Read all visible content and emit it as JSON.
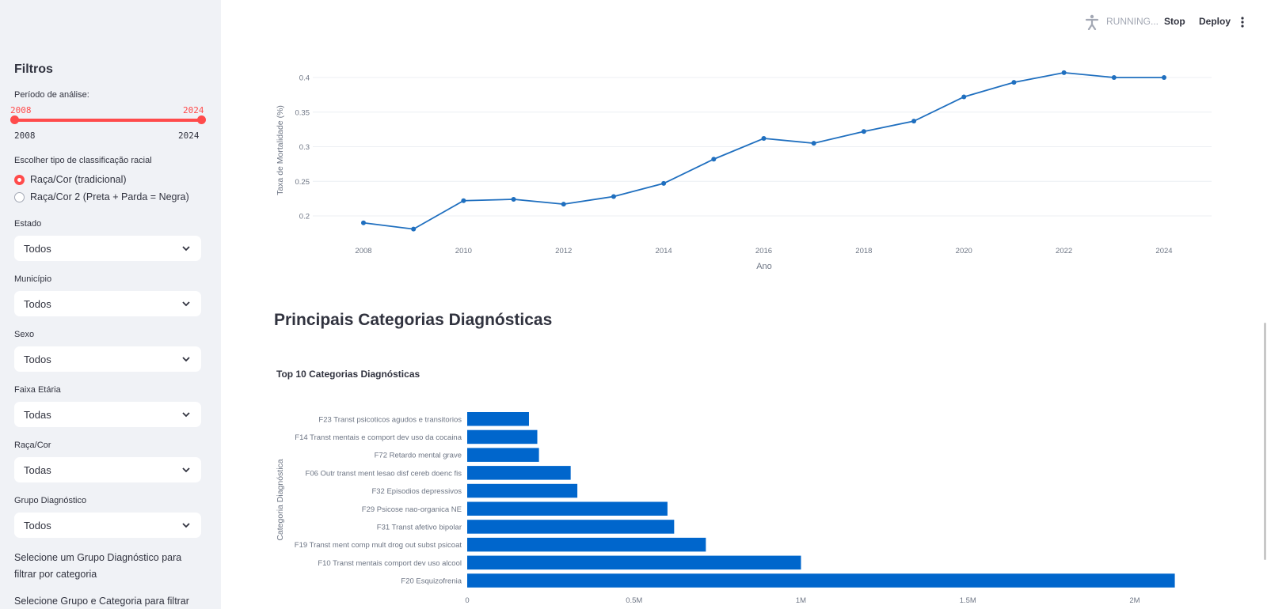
{
  "header": {
    "status": "RUNNING...",
    "stop_label": "Stop",
    "deploy_label": "Deploy"
  },
  "sidebar": {
    "title": "Filtros",
    "period_label": "Período de análise:",
    "period_value_start": "2008",
    "period_value_end": "2024",
    "period_min": "2008",
    "period_max": "2024",
    "race_type_label": "Escolher tipo de classificação racial",
    "race_options": [
      {
        "label": "Raça/Cor (tradicional)",
        "selected": true
      },
      {
        "label": "Raça/Cor 2 (Preta + Parda = Negra)",
        "selected": false
      }
    ],
    "filters": [
      {
        "label": "Estado",
        "value": "Todos"
      },
      {
        "label": "Município",
        "value": "Todos"
      },
      {
        "label": "Sexo",
        "value": "Todos"
      },
      {
        "label": "Faixa Etária",
        "value": "Todas"
      },
      {
        "label": "Raça/Cor",
        "value": "Todas"
      },
      {
        "label": "Grupo Diagnóstico",
        "value": "Todos"
      }
    ],
    "note1": "Selecione um Grupo Diagnóstico para filtrar por categoria",
    "note2": "Selecione Grupo e Categoria para filtrar"
  },
  "main": {
    "section_heading": "Principais Categorias Diagnósticas",
    "bar_chart_title": "Top 10 Categorias Diagnósticas"
  },
  "colors": {
    "accent": "#ff4b4b",
    "line": "#1f6fbf",
    "bar": "#0066cc"
  },
  "chart_data": [
    {
      "type": "line",
      "title": "",
      "xlabel": "Ano",
      "ylabel": "Taxa de Mortalidade (%)",
      "x": [
        2008,
        2009,
        2010,
        2011,
        2012,
        2013,
        2014,
        2015,
        2016,
        2017,
        2018,
        2019,
        2020,
        2021,
        2022,
        2023,
        2024
      ],
      "y": [
        0.19,
        0.181,
        0.222,
        0.224,
        0.217,
        0.228,
        0.247,
        0.282,
        0.312,
        0.305,
        0.322,
        0.337,
        0.372,
        0.393,
        0.407,
        0.4,
        0.4
      ],
      "xticks": [
        "2008",
        "2010",
        "2012",
        "2014",
        "2016",
        "2018",
        "2020",
        "2022",
        "2024"
      ],
      "yticks": [
        "0.2",
        "0.25",
        "0.3",
        "0.35",
        "0.4"
      ],
      "grid": true
    },
    {
      "type": "bar",
      "orientation": "horizontal",
      "title": "Top 10 Categorias Diagnósticas",
      "ylabel": "Categoria Diagnóstica",
      "categories": [
        "F23 Transt psicoticos agudos e transitorios",
        "F14 Transt mentais e comport dev uso da cocaina",
        "F72 Retardo mental grave",
        "F06 Outr transt ment lesao disf cereb doenc fis",
        "F32 Episodios depressivos",
        "F29 Psicose nao-organica NE",
        "F31 Transt afetivo bipolar",
        "F19 Transt ment comp mult drog out subst psicoat",
        "F10 Transt mentais comport dev uso alcool",
        "F20 Esquizofrenia"
      ],
      "values": [
        185000,
        210000,
        215000,
        310000,
        330000,
        600000,
        620000,
        715000,
        1000000,
        2120000
      ],
      "xticks": [
        "0",
        "0.5M",
        "1M",
        "1.5M",
        "2M"
      ],
      "xlim": [
        0,
        2150000
      ]
    }
  ]
}
